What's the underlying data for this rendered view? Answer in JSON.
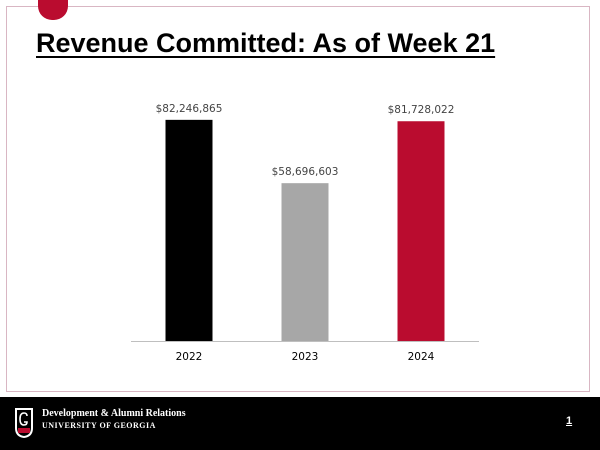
{
  "slide": {
    "title": "Revenue Committed: As of Week 21",
    "page_number": "1"
  },
  "footer": {
    "org_line1": "Development & Alumni Relations",
    "org_line2": "UNIVERSITY OF GEORGIA"
  },
  "colors": {
    "brand_red": "#BA0C2F",
    "footer_bg": "#000000"
  },
  "chart_data": {
    "type": "bar",
    "categories": [
      "2022",
      "2023",
      "2024"
    ],
    "values": [
      82246865,
      58696603,
      81728022
    ],
    "data_labels": [
      "$82,246,865",
      "$58,696,603",
      "$81,728,022"
    ],
    "bar_colors": [
      "#000000",
      "#A7A7A7",
      "#BA0C2F"
    ],
    "title": "",
    "xlabel": "",
    "ylabel": "",
    "ylim": [
      0,
      90000000
    ],
    "grid": false,
    "legend": "none"
  }
}
